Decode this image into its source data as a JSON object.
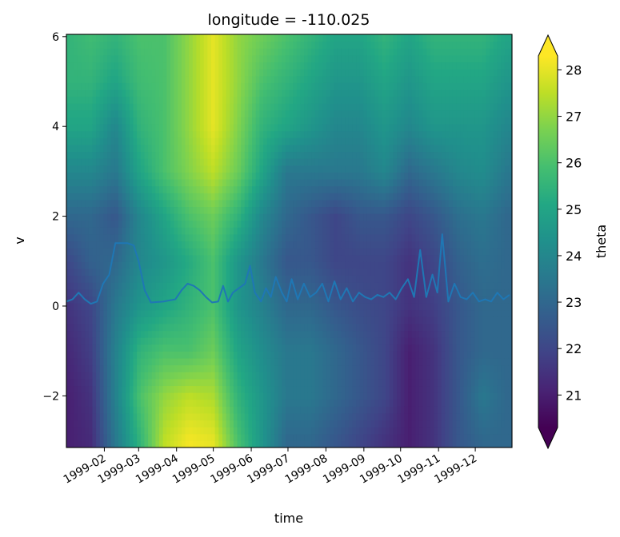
{
  "chart_data": {
    "type": "heatmap",
    "title": "longitude = -110.025",
    "xlabel": "time",
    "ylabel": "v",
    "colorbar_label": "theta",
    "colormap": "viridis",
    "colorbar_extend": "both",
    "xlim": [
      "1999-01-01",
      "1999-12-31"
    ],
    "ylim": [
      -3.15,
      6.05
    ],
    "clim": [
      20.3,
      28.3
    ],
    "x_ticks": [
      "1999-02",
      "1999-03",
      "1999-04",
      "1999-05",
      "1999-06",
      "1999-07",
      "1999-08",
      "1999-09",
      "1999-10",
      "1999-11",
      "1999-12"
    ],
    "y_ticks": [
      -2,
      0,
      2,
      4,
      6
    ],
    "y_tick_labels": [
      "−2",
      "0",
      "2",
      "4",
      "6"
    ],
    "colorbar_ticks": [
      21,
      22,
      23,
      24,
      25,
      26,
      27,
      28
    ],
    "heatmap_approx": {
      "description": "theta(time, v), approximate values read from colour",
      "v_levels": [
        -3,
        -2,
        -1,
        0,
        1,
        2,
        3,
        4,
        5,
        6
      ],
      "time_nodes": [
        "1999-01-01",
        "1999-01-21",
        "1999-02-10",
        "1999-03-02",
        "1999-03-22",
        "1999-04-11",
        "1999-05-01",
        "1999-05-21",
        "1999-06-10",
        "1999-06-30",
        "1999-07-20",
        "1999-08-09",
        "1999-08-29",
        "1999-09-18",
        "1999-10-08",
        "1999-10-28",
        "1999-11-17",
        "1999-12-07",
        "1999-12-27"
      ],
      "theta": [
        [
          21.0,
          21.3,
          23.5,
          25.5,
          27.5,
          28.2,
          28.0,
          26.0,
          24.5,
          23.0,
          23.0,
          22.5,
          22.0,
          21.5,
          21.0,
          21.5,
          22.5,
          23.0,
          23.0
        ],
        [
          21.0,
          21.5,
          23.8,
          26.0,
          27.0,
          27.5,
          27.3,
          25.5,
          24.5,
          23.5,
          23.5,
          23.0,
          22.5,
          22.0,
          21.0,
          21.5,
          22.5,
          23.5,
          23.0
        ],
        [
          21.2,
          21.8,
          23.8,
          25.5,
          26.0,
          26.0,
          26.5,
          25.0,
          24.2,
          23.5,
          23.5,
          23.0,
          22.5,
          22.0,
          21.0,
          21.5,
          22.5,
          23.0,
          23.0
        ],
        [
          21.5,
          22.0,
          23.5,
          24.5,
          25.0,
          25.5,
          26.0,
          24.5,
          23.8,
          23.0,
          23.0,
          22.5,
          22.2,
          22.0,
          21.5,
          21.8,
          22.5,
          23.0,
          23.0
        ],
        [
          22.0,
          22.8,
          23.0,
          24.0,
          24.5,
          25.2,
          26.0,
          24.5,
          23.5,
          22.5,
          22.5,
          22.0,
          22.0,
          22.0,
          21.5,
          22.0,
          22.8,
          23.2,
          23.0
        ],
        [
          23.0,
          23.0,
          22.5,
          24.0,
          25.0,
          26.0,
          26.5,
          25.5,
          24.0,
          23.0,
          22.5,
          22.0,
          22.5,
          22.5,
          22.0,
          22.5,
          23.2,
          23.5,
          23.0
        ],
        [
          24.0,
          24.0,
          23.5,
          25.0,
          26.0,
          26.8,
          27.5,
          26.5,
          25.0,
          23.5,
          23.5,
          23.5,
          23.5,
          24.0,
          23.0,
          23.5,
          24.0,
          24.2,
          23.5
        ],
        [
          25.0,
          25.0,
          24.0,
          25.5,
          26.0,
          27.0,
          28.0,
          26.8,
          25.5,
          25.0,
          24.5,
          24.0,
          24.0,
          24.5,
          24.0,
          24.5,
          24.5,
          24.5,
          24.0
        ],
        [
          25.5,
          25.5,
          25.0,
          25.8,
          26.0,
          27.0,
          28.0,
          27.0,
          26.0,
          25.5,
          25.0,
          24.5,
          24.5,
          25.0,
          24.5,
          25.0,
          25.0,
          25.0,
          24.5
        ],
        [
          25.5,
          25.8,
          25.5,
          26.0,
          26.0,
          27.0,
          28.0,
          27.0,
          26.5,
          26.0,
          25.5,
          25.0,
          25.0,
          25.5,
          25.0,
          25.5,
          25.5,
          25.5,
          25.0
        ]
      ]
    },
    "series": [
      {
        "type": "line",
        "color": "#1f77b4",
        "x": [
          "1999-01-01",
          "1999-01-06",
          "1999-01-11",
          "1999-01-16",
          "1999-01-21",
          "1999-01-26",
          "1999-01-31",
          "1999-02-05",
          "1999-02-10",
          "1999-02-15",
          "1999-02-20",
          "1999-02-25",
          "1999-03-01",
          "1999-03-06",
          "1999-03-11",
          "1999-03-21",
          "1999-03-31",
          "1999-04-05",
          "1999-04-10",
          "1999-04-15",
          "1999-04-20",
          "1999-04-25",
          "1999-04-30",
          "1999-05-05",
          "1999-05-09",
          "1999-05-13",
          "1999-05-17",
          "1999-05-22",
          "1999-05-27",
          "1999-05-31",
          "1999-06-04",
          "1999-06-09",
          "1999-06-13",
          "1999-06-17",
          "1999-06-21",
          "1999-06-26",
          "1999-06-30",
          "1999-07-04",
          "1999-07-09",
          "1999-07-14",
          "1999-07-19",
          "1999-07-24",
          "1999-07-29",
          "1999-08-03",
          "1999-08-08",
          "1999-08-13",
          "1999-08-18",
          "1999-08-23",
          "1999-08-28",
          "1999-09-02",
          "1999-09-07",
          "1999-09-12",
          "1999-09-17",
          "1999-09-22",
          "1999-09-27",
          "1999-10-02",
          "1999-10-07",
          "1999-10-12",
          "1999-10-17",
          "1999-10-22",
          "1999-10-27",
          "1999-10-31",
          "1999-11-04",
          "1999-11-09",
          "1999-11-14",
          "1999-11-19",
          "1999-11-24",
          "1999-11-29",
          "1999-12-04",
          "1999-12-09",
          "1999-12-14",
          "1999-12-19",
          "1999-12-24",
          "1999-12-29"
        ],
        "y": [
          0.1,
          0.15,
          0.3,
          0.15,
          0.05,
          0.1,
          0.5,
          0.7,
          1.4,
          1.4,
          1.4,
          1.35,
          1.0,
          0.35,
          0.08,
          0.1,
          0.15,
          0.35,
          0.5,
          0.45,
          0.35,
          0.2,
          0.08,
          0.1,
          0.45,
          0.1,
          0.3,
          0.4,
          0.5,
          0.9,
          0.3,
          0.1,
          0.4,
          0.2,
          0.65,
          0.3,
          0.1,
          0.6,
          0.15,
          0.5,
          0.2,
          0.3,
          0.5,
          0.1,
          0.55,
          0.15,
          0.4,
          0.1,
          0.3,
          0.2,
          0.15,
          0.25,
          0.2,
          0.3,
          0.15,
          0.4,
          0.6,
          0.2,
          1.25,
          0.2,
          0.7,
          0.3,
          1.6,
          0.1,
          0.5,
          0.2,
          0.15,
          0.3,
          0.1,
          0.15,
          0.1,
          0.3,
          0.15,
          0.25
        ]
      }
    ]
  }
}
